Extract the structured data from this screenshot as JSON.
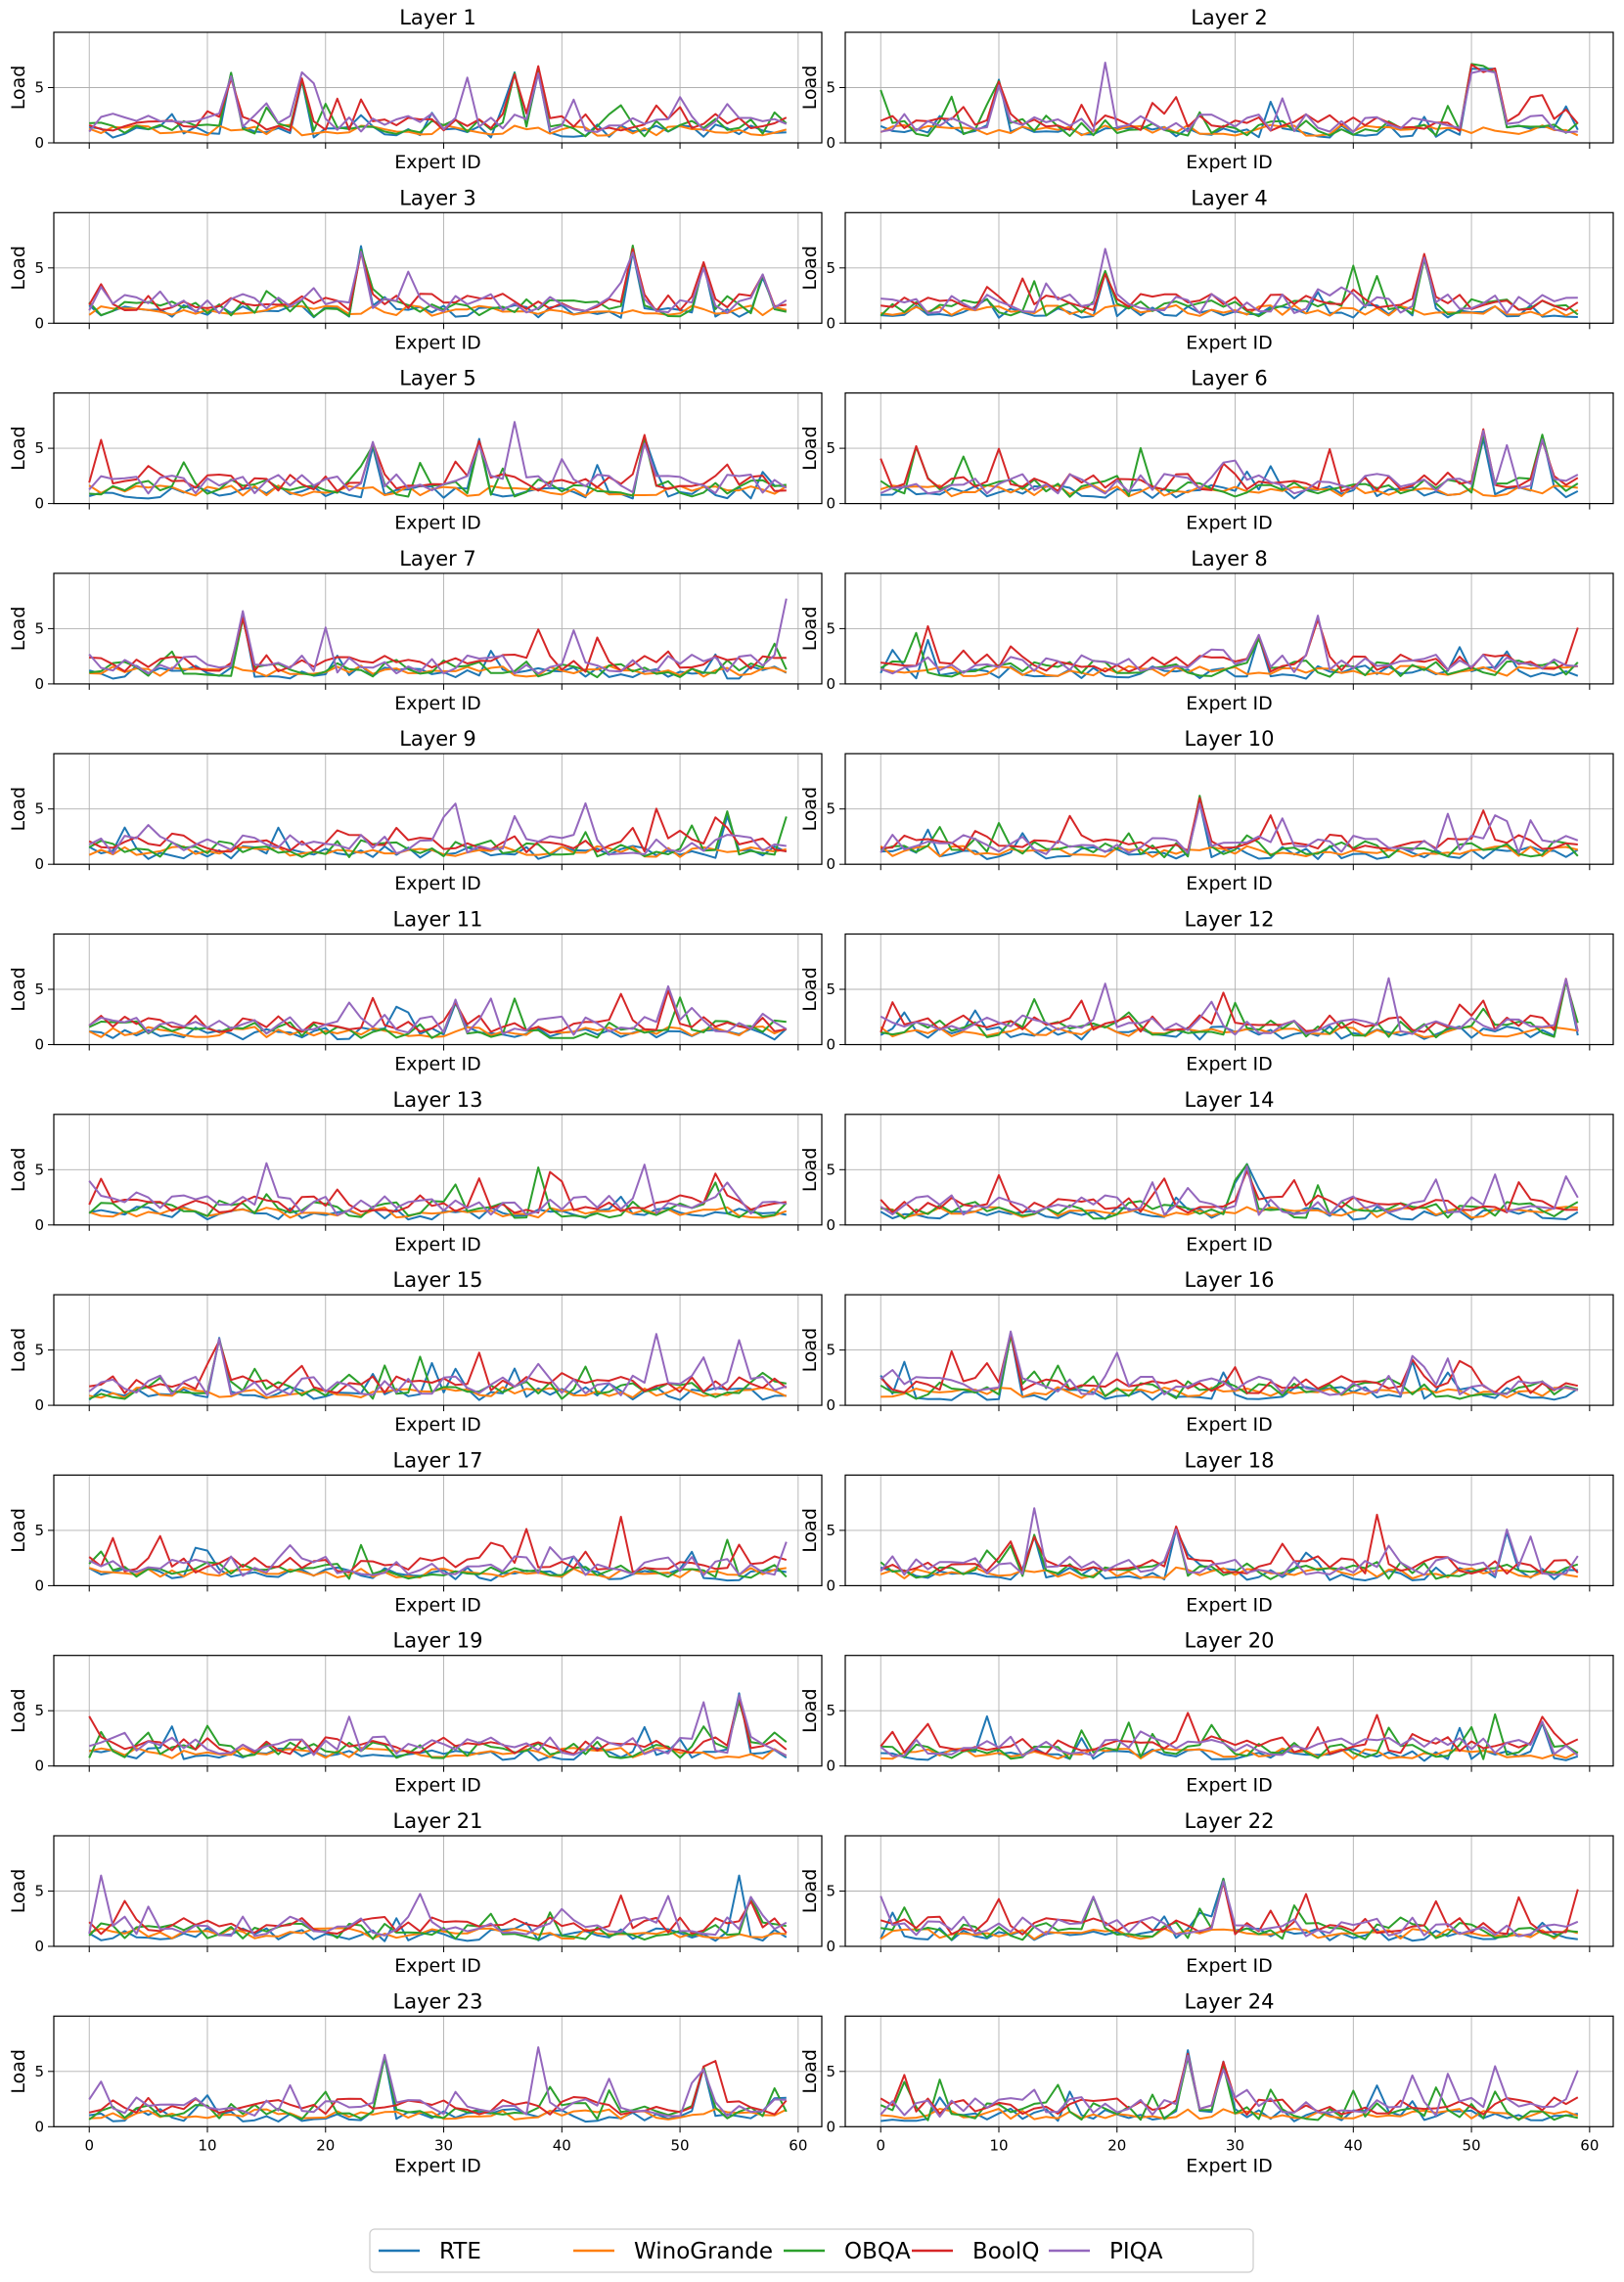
{
  "figure": {
    "xlabel": "Expert ID",
    "ylabel": "Load",
    "xticks": [
      0,
      10,
      20,
      30,
      40,
      50,
      60
    ],
    "yticks": [
      0,
      5
    ],
    "ylim": [
      0,
      10
    ],
    "xlim": [
      -3,
      62
    ],
    "grid": true,
    "legend_position": "bottom-center"
  },
  "legend": [
    {
      "name": "RTE",
      "color": "#1f77b4"
    },
    {
      "name": "WinoGrande",
      "color": "#ff7f0e"
    },
    {
      "name": "OBQA",
      "color": "#2ca02c"
    },
    {
      "name": "BoolQ",
      "color": "#d62728"
    },
    {
      "name": "PIQA",
      "color": "#9467bd"
    }
  ],
  "chart_data": {
    "type": "line",
    "layout": "12x2 grid of subplots",
    "titles": [
      "Layer 1",
      "Layer 2",
      "Layer 3",
      "Layer 4",
      "Layer 5",
      "Layer 6",
      "Layer 7",
      "Layer 8",
      "Layer 9",
      "Layer 10",
      "Layer 11",
      "Layer 12",
      "Layer 13",
      "Layer 14",
      "Layer 15",
      "Layer 16",
      "Layer 17",
      "Layer 18",
      "Layer 19",
      "Layer 20",
      "Layer 21",
      "Layer 22",
      "Layer 23",
      "Layer 24"
    ],
    "x": "expert ids 0..59",
    "series_names": [
      "RTE",
      "WinoGrande",
      "OBQA",
      "BoolQ",
      "PIQA"
    ],
    "base_levels": [
      1.0,
      1.1,
      1.3,
      1.8,
      1.7
    ],
    "noise_amplitude": [
      0.6,
      0.5,
      0.8,
      0.8,
      0.9
    ],
    "peaks": [
      [
        [
          12,
          6.5,
          [
            1,
            0,
            1,
            1,
            1
          ]
        ],
        [
          18,
          6.5,
          [
            1,
            0,
            1,
            1,
            1
          ]
        ],
        [
          19,
          6.0,
          [
            0,
            0,
            0,
            0,
            1
          ]
        ],
        [
          32,
          6.0,
          [
            0,
            0,
            0,
            0,
            1
          ]
        ],
        [
          36,
          6.5,
          [
            1,
            0,
            1,
            1,
            0
          ]
        ],
        [
          38,
          7.0,
          [
            1,
            0,
            1,
            1,
            1
          ]
        ],
        [
          50,
          4.8,
          [
            0,
            0,
            0,
            0,
            1
          ]
        ]
      ],
      [
        [
          0,
          5.5,
          [
            0,
            0,
            1,
            0,
            0
          ]
        ],
        [
          10,
          5.8,
          [
            1,
            0,
            1,
            1,
            1
          ]
        ],
        [
          19,
          7.5,
          [
            0,
            0,
            0,
            0,
            1
          ]
        ],
        [
          50,
          7.3,
          [
            1,
            0,
            1,
            1,
            1
          ]
        ],
        [
          51,
          7.1,
          [
            1,
            0,
            1,
            1,
            1
          ]
        ],
        [
          52,
          7.3,
          [
            1,
            0,
            1,
            1,
            1
          ]
        ]
      ],
      [
        [
          23,
          7.2,
          [
            1,
            0,
            1,
            1,
            1
          ]
        ],
        [
          27,
          4.8,
          [
            0,
            0,
            0,
            0,
            1
          ]
        ],
        [
          46,
          7.2,
          [
            1,
            0,
            1,
            1,
            1
          ]
        ],
        [
          52,
          5.7,
          [
            1,
            0,
            1,
            1,
            1
          ]
        ],
        [
          57,
          4.5,
          [
            1,
            0,
            1,
            1,
            1
          ]
        ]
      ],
      [
        [
          19,
          7.0,
          [
            0,
            0,
            0,
            0,
            1
          ]
        ],
        [
          19,
          5.0,
          [
            1,
            0,
            1,
            1,
            0
          ]
        ],
        [
          40,
          5.8,
          [
            0,
            0,
            1,
            0,
            0
          ]
        ],
        [
          46,
          6.6,
          [
            1,
            0,
            1,
            1,
            1
          ]
        ]
      ],
      [
        [
          1,
          6.3,
          [
            0,
            0,
            0,
            1,
            0
          ]
        ],
        [
          24,
          5.6,
          [
            1,
            0,
            1,
            1,
            1
          ]
        ],
        [
          33,
          6.0,
          [
            1,
            0,
            1,
            1,
            1
          ]
        ],
        [
          36,
          7.5,
          [
            0,
            0,
            0,
            0,
            1
          ]
        ],
        [
          47,
          6.3,
          [
            1,
            0,
            1,
            1,
            1
          ]
        ]
      ],
      [
        [
          3,
          5.3,
          [
            0,
            0,
            1,
            1,
            0
          ]
        ],
        [
          10,
          5.3,
          [
            0,
            0,
            0,
            1,
            0
          ]
        ],
        [
          22,
          5.2,
          [
            0,
            0,
            1,
            0,
            0
          ]
        ],
        [
          38,
          5.4,
          [
            0,
            0,
            0,
            1,
            0
          ]
        ],
        [
          51,
          6.8,
          [
            1,
            0,
            1,
            1,
            1
          ]
        ],
        [
          53,
          6.0,
          [
            0,
            0,
            0,
            0,
            1
          ]
        ],
        [
          56,
          6.6,
          [
            1,
            0,
            1,
            1,
            1
          ]
        ]
      ],
      [
        [
          13,
          6.8,
          [
            1,
            0,
            1,
            1,
            1
          ]
        ],
        [
          20,
          5.6,
          [
            0,
            0,
            0,
            0,
            1
          ]
        ],
        [
          38,
          5.2,
          [
            0,
            0,
            0,
            1,
            0
          ]
        ],
        [
          43,
          4.8,
          [
            0,
            0,
            0,
            1,
            0
          ]
        ],
        [
          59,
          7.8,
          [
            0,
            0,
            0,
            0,
            1
          ]
        ]
      ],
      [
        [
          4,
          6.0,
          [
            0,
            0,
            0,
            1,
            0
          ]
        ],
        [
          3,
          5.2,
          [
            0,
            0,
            1,
            0,
            0
          ]
        ],
        [
          32,
          4.6,
          [
            1,
            0,
            1,
            1,
            1
          ]
        ],
        [
          37,
          6.2,
          [
            0,
            0,
            0,
            1,
            1
          ]
        ],
        [
          59,
          5.2,
          [
            0,
            0,
            0,
            1,
            0
          ]
        ]
      ],
      [
        [
          31,
          6.3,
          [
            0,
            0,
            0,
            0,
            1
          ]
        ],
        [
          42,
          5.8,
          [
            0,
            0,
            0,
            0,
            1
          ]
        ],
        [
          48,
          5.3,
          [
            0,
            0,
            0,
            1,
            0
          ]
        ],
        [
          54,
          5.0,
          [
            1,
            0,
            1,
            0,
            0
          ]
        ]
      ],
      [
        [
          27,
          6.2,
          [
            1,
            0,
            1,
            1,
            1
          ]
        ],
        [
          34,
          4.8,
          [
            0,
            0,
            0,
            0,
            1
          ]
        ],
        [
          51,
          5.5,
          [
            0,
            0,
            0,
            1,
            0
          ]
        ],
        [
          53,
          4.5,
          [
            0,
            0,
            0,
            0,
            1
          ]
        ]
      ],
      [
        [
          49,
          5.4,
          [
            0,
            0,
            0,
            1,
            1
          ]
        ],
        [
          24,
          4.5,
          [
            0,
            0,
            0,
            1,
            0
          ]
        ],
        [
          31,
          4.2,
          [
            1,
            0,
            1,
            1,
            1
          ]
        ]
      ],
      [
        [
          13,
          4.6,
          [
            0,
            0,
            1,
            0,
            0
          ]
        ],
        [
          19,
          6.0,
          [
            0,
            0,
            0,
            0,
            1
          ]
        ],
        [
          29,
          4.8,
          [
            0,
            0,
            0,
            1,
            0
          ]
        ],
        [
          43,
          6.7,
          [
            0,
            0,
            0,
            0,
            1
          ]
        ],
        [
          58,
          6.3,
          [
            1,
            0,
            1,
            1,
            1
          ]
        ]
      ],
      [
        [
          1,
          4.5,
          [
            0,
            0,
            0,
            1,
            0
          ]
        ],
        [
          15,
          6.3,
          [
            0,
            0,
            0,
            0,
            1
          ]
        ],
        [
          33,
          4.8,
          [
            0,
            0,
            0,
            1,
            0
          ]
        ],
        [
          38,
          5.8,
          [
            0,
            0,
            1,
            0,
            0
          ]
        ],
        [
          39,
          5.0,
          [
            0,
            0,
            0,
            1,
            0
          ]
        ],
        [
          47,
          5.7,
          [
            0,
            0,
            0,
            0,
            1
          ]
        ],
        [
          53,
          5.0,
          [
            0,
            0,
            0,
            1,
            0
          ]
        ]
      ],
      [
        [
          10,
          5.2,
          [
            0,
            0,
            0,
            1,
            0
          ]
        ],
        [
          30,
          4.2,
          [
            1,
            0,
            1,
            0,
            0
          ]
        ],
        [
          31,
          5.6,
          [
            1,
            0,
            1,
            1,
            1
          ]
        ],
        [
          52,
          4.8,
          [
            0,
            0,
            0,
            0,
            1
          ]
        ],
        [
          54,
          4.5,
          [
            0,
            0,
            0,
            1,
            0
          ]
        ]
      ],
      [
        [
          11,
          6.3,
          [
            1,
            0,
            1,
            1,
            1
          ]
        ],
        [
          28,
          4.8,
          [
            0,
            0,
            1,
            0,
            0
          ]
        ],
        [
          33,
          4.9,
          [
            0,
            0,
            0,
            1,
            0
          ]
        ],
        [
          48,
          6.6,
          [
            0,
            0,
            0,
            0,
            1
          ]
        ],
        [
          55,
          6.0,
          [
            0,
            0,
            0,
            0,
            1
          ]
        ]
      ],
      [
        [
          2,
          4.4,
          [
            1,
            0,
            0,
            0,
            0
          ]
        ],
        [
          11,
          6.8,
          [
            1,
            0,
            1,
            1,
            1
          ]
        ],
        [
          45,
          4.5,
          [
            1,
            0,
            0,
            1,
            1
          ]
        ],
        [
          48,
          4.6,
          [
            0,
            0,
            0,
            0,
            1
          ]
        ]
      ],
      [
        [
          6,
          4.7,
          [
            0,
            0,
            0,
            1,
            0
          ]
        ],
        [
          23,
          3.8,
          [
            0,
            0,
            1,
            0,
            0
          ]
        ],
        [
          37,
          5.3,
          [
            0,
            0,
            0,
            1,
            0
          ]
        ],
        [
          45,
          6.6,
          [
            0,
            0,
            0,
            1,
            0
          ]
        ],
        [
          54,
          4.2,
          [
            0,
            0,
            1,
            0,
            0
          ]
        ]
      ],
      [
        [
          13,
          7.9,
          [
            0,
            0,
            0,
            0,
            1
          ]
        ],
        [
          13,
          5.0,
          [
            1,
            0,
            1,
            1,
            0
          ]
        ],
        [
          25,
          5.7,
          [
            1,
            0,
            1,
            1,
            1
          ]
        ],
        [
          42,
          6.7,
          [
            0,
            0,
            0,
            1,
            0
          ]
        ],
        [
          53,
          5.5,
          [
            1,
            0,
            0,
            0,
            1
          ]
        ],
        [
          55,
          4.5,
          [
            0,
            0,
            0,
            0,
            1
          ]
        ]
      ],
      [
        [
          7,
          3.8,
          [
            1,
            0,
            0,
            0,
            0
          ]
        ],
        [
          52,
          5.8,
          [
            0,
            0,
            0,
            0,
            1
          ]
        ],
        [
          55,
          6.7,
          [
            1,
            0,
            1,
            1,
            1
          ]
        ]
      ],
      [
        [
          9,
          4.5,
          [
            1,
            0,
            0,
            0,
            0
          ]
        ],
        [
          26,
          5.0,
          [
            0,
            0,
            0,
            1,
            0
          ]
        ],
        [
          42,
          5.0,
          [
            0,
            0,
            0,
            1,
            0
          ]
        ],
        [
          52,
          4.8,
          [
            0,
            0,
            1,
            0,
            0
          ]
        ],
        [
          56,
          4.5,
          [
            1,
            0,
            1,
            1,
            1
          ]
        ]
      ],
      [
        [
          1,
          6.7,
          [
            0,
            0,
            0,
            0,
            1
          ]
        ],
        [
          45,
          4.8,
          [
            0,
            0,
            0,
            1,
            0
          ]
        ],
        [
          55,
          6.7,
          [
            1,
            0,
            0,
            0,
            0
          ]
        ],
        [
          56,
          4.6,
          [
            0,
            0,
            1,
            1,
            1
          ]
        ]
      ],
      [
        [
          10,
          4.7,
          [
            0,
            0,
            0,
            1,
            0
          ]
        ],
        [
          18,
          4.6,
          [
            0,
            0,
            1,
            0,
            1
          ]
        ],
        [
          29,
          6.6,
          [
            1,
            0,
            1,
            1,
            1
          ]
        ],
        [
          36,
          4.8,
          [
            0,
            0,
            0,
            1,
            0
          ]
        ],
        [
          59,
          5.2,
          [
            0,
            0,
            0,
            1,
            0
          ]
        ]
      ],
      [
        [
          25,
          7.2,
          [
            1,
            0,
            1,
            0,
            1
          ]
        ],
        [
          38,
          7.7,
          [
            0,
            0,
            0,
            0,
            1
          ]
        ],
        [
          52,
          5.5,
          [
            1,
            0,
            1,
            1,
            1
          ]
        ],
        [
          53,
          6.2,
          [
            0,
            0,
            0,
            1,
            0
          ]
        ],
        [
          44,
          4.8,
          [
            0,
            0,
            0,
            0,
            1
          ]
        ]
      ],
      [
        [
          26,
          7.0,
          [
            1,
            0,
            1,
            1,
            1
          ]
        ],
        [
          29,
          6.0,
          [
            1,
            0,
            1,
            1,
            1
          ]
        ],
        [
          45,
          5.0,
          [
            0,
            0,
            0,
            0,
            1
          ]
        ],
        [
          52,
          5.5,
          [
            0,
            0,
            0,
            0,
            1
          ]
        ],
        [
          59,
          5.2,
          [
            0,
            0,
            0,
            0,
            1
          ]
        ]
      ]
    ]
  }
}
